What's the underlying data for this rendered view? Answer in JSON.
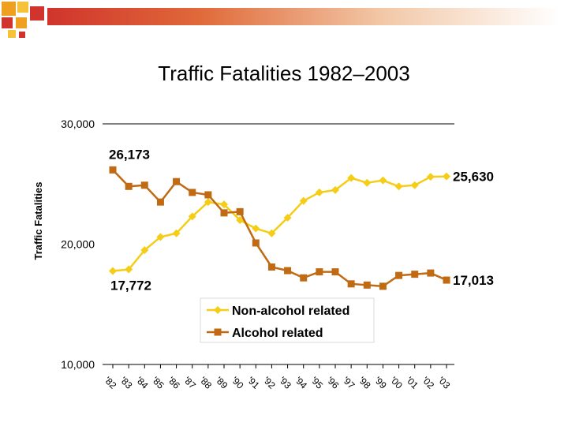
{
  "colors": {
    "non_alcohol": "#f5cd16",
    "alcohol": "#c06a14",
    "deco_red": "#d0342c",
    "deco_orange": "#f0a020"
  },
  "chart_data": {
    "type": "line",
    "title": "Traffic Fatalities 1982–2003",
    "ylabel": "Traffic Fatalities",
    "xlabel": "",
    "ylim": [
      10000,
      30000
    ],
    "yticks": [
      "10,000",
      "20,000",
      "30,000"
    ],
    "ytick_values": [
      10000,
      20000,
      30000
    ],
    "x": [
      "'82",
      "'83",
      "'84",
      "'85",
      "'86",
      "'87",
      "'88",
      "'89",
      "'90",
      "'91",
      "'92",
      "'93",
      "'94",
      "'95",
      "'96",
      "'97",
      "'98",
      "'99",
      "'00",
      "'01",
      "'02",
      "'03"
    ],
    "legend_position": "lower-center",
    "grid": false,
    "series": [
      {
        "name": "Non-alcohol related",
        "marker": "diamond",
        "values": [
          17772,
          17900,
          19500,
          20600,
          20900,
          22300,
          23500,
          23300,
          22000,
          21300,
          20900,
          22200,
          23600,
          24300,
          24500,
          25500,
          25100,
          25300,
          24800,
          24900,
          25600,
          25630
        ]
      },
      {
        "name": "Alcohol related",
        "marker": "square",
        "values": [
          26173,
          24800,
          24900,
          23500,
          25200,
          24300,
          24100,
          22600,
          22700,
          20100,
          18100,
          17800,
          17200,
          17700,
          17700,
          16700,
          16600,
          16500,
          17400,
          17500,
          17600,
          17013
        ]
      }
    ],
    "annotations": [
      {
        "text": "26,173"
      },
      {
        "text": "25,630"
      },
      {
        "text": "17,772"
      },
      {
        "text": "17,013"
      }
    ]
  }
}
